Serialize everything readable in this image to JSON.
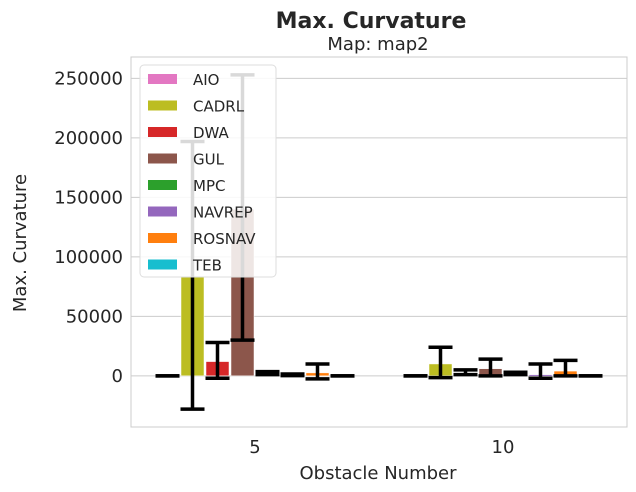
{
  "chart_data": {
    "type": "bar",
    "title": "Max. Curvature",
    "subtitle": "Map: map2",
    "xlabel": "Obstacle Number",
    "ylabel": "Max. Curvature",
    "ylim": [
      -43000,
      268000
    ],
    "yticks": [
      0,
      50000,
      100000,
      150000,
      200000,
      250000
    ],
    "ytick_labels": [
      "0",
      "50000",
      "100000",
      "150000",
      "200000",
      "250000"
    ],
    "categories": [
      "5",
      "10"
    ],
    "grid": true,
    "legend_position": "top-left",
    "series": [
      {
        "name": "AIO",
        "color": "#e377c2",
        "values": [
          200,
          200
        ],
        "err_low": [
          0,
          0
        ],
        "err_high": [
          0,
          0
        ]
      },
      {
        "name": "CADRL",
        "color": "#bcbd22",
        "values": [
          83000,
          10000
        ],
        "err_low": [
          -28000,
          -1500
        ],
        "err_high": [
          197000,
          24000
        ]
      },
      {
        "name": "DWA",
        "color": "#d62728",
        "values": [
          12000,
          2000
        ],
        "err_low": [
          -2000,
          1000
        ],
        "err_high": [
          28000,
          5000
        ]
      },
      {
        "name": "GUL",
        "color": "#8c564b",
        "values": [
          140000,
          6000
        ],
        "err_low": [
          30000,
          0
        ],
        "err_high": [
          253000,
          14000
        ]
      },
      {
        "name": "MPC",
        "color": "#2ca02c",
        "values": [
          2000,
          2000
        ],
        "err_low": [
          1000,
          1000
        ],
        "err_high": [
          3500,
          3000
        ]
      },
      {
        "name": "NAVREP",
        "color": "#9467bd",
        "values": [
          500,
          1000
        ],
        "err_low": [
          200,
          -2000
        ],
        "err_high": [
          1500,
          10000
        ]
      },
      {
        "name": "ROSNAV",
        "color": "#ff7f0e",
        "values": [
          2500,
          4000
        ],
        "err_low": [
          -2500,
          0
        ],
        "err_high": [
          10000,
          13000
        ]
      },
      {
        "name": "TEB",
        "color": "#17becf",
        "values": [
          200,
          300
        ],
        "err_low": [
          0,
          0
        ],
        "err_high": [
          0,
          0
        ]
      }
    ]
  }
}
